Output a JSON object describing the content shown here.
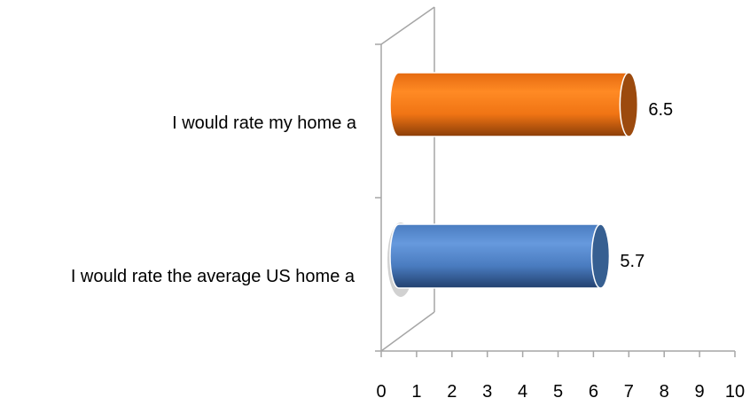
{
  "chart_data": {
    "type": "bar",
    "orientation": "horizontal",
    "style": "3d-cylinder",
    "categories": [
      "I would rate my home a",
      "I would rate the average US home a"
    ],
    "values": [
      6.5,
      5.7
    ],
    "data_labels": [
      "6.5",
      "5.7"
    ],
    "bar_colors": [
      "#f47a1a",
      "#4f81bd"
    ],
    "xlim": [
      0,
      10
    ],
    "xticks": [
      "0",
      "1",
      "2",
      "3",
      "4",
      "5",
      "6",
      "7",
      "8",
      "9",
      "10"
    ],
    "grid": false,
    "legend": "none"
  }
}
